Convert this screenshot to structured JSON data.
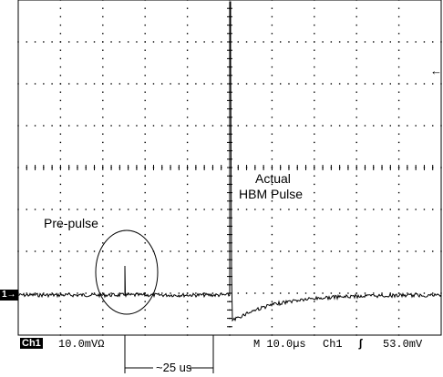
{
  "annotations": {
    "prepulse": "Pre-pulse",
    "actual_line1": "Actual",
    "actual_line2": "HBM Pulse",
    "interval": "~25 us"
  },
  "status_bar": {
    "channel": "Ch1",
    "volts_per_div": "10.0mVΩ",
    "timebase": "M 10.0µs",
    "trigger_source": "Ch1",
    "trigger_slope_symbol": "ʃ",
    "trigger_level": "53.0mV"
  },
  "markers": {
    "ground_marker": "1→",
    "trigger_marker": "←"
  },
  "colors": {
    "background": "#ffffff",
    "trace": "#000000",
    "grid": "#000000"
  }
}
